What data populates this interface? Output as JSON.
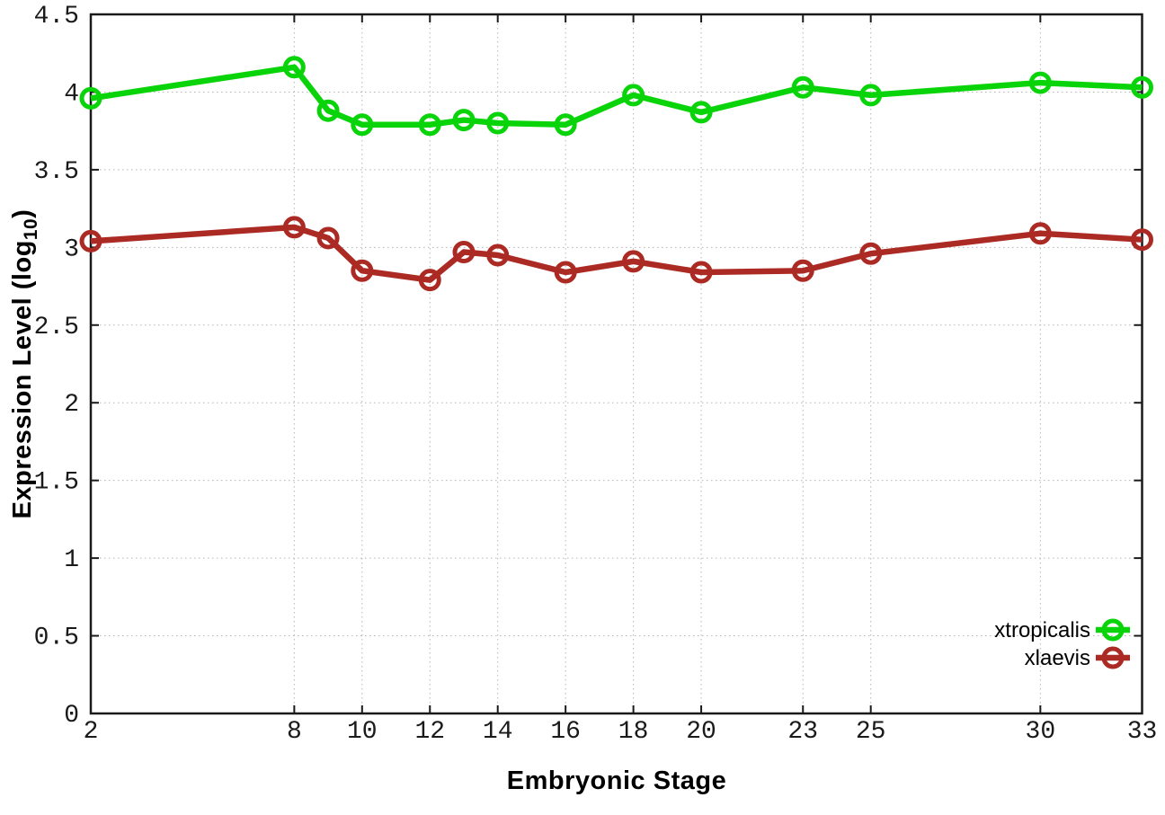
{
  "chart_data": {
    "type": "line",
    "title": "",
    "xlabel": "Embryonic Stage",
    "ylabel": {
      "full": "Expression Level (log10)",
      "pre": "Expression Level (log",
      "sub": "10",
      "post": ")"
    },
    "x": [
      2,
      8,
      9,
      10,
      12,
      13,
      14,
      16,
      18,
      20,
      23,
      25,
      30,
      33
    ],
    "series": [
      {
        "name": "xtropicalis",
        "color": "#09d309",
        "values": [
          3.96,
          4.16,
          3.88,
          3.79,
          3.79,
          3.82,
          3.8,
          3.79,
          3.98,
          3.87,
          4.03,
          3.98,
          4.06,
          4.03
        ]
      },
      {
        "name": "xlaevis",
        "color": "#ac2a24",
        "values": [
          3.04,
          3.13,
          3.06,
          2.85,
          2.79,
          2.97,
          2.95,
          2.84,
          2.91,
          2.84,
          2.85,
          2.96,
          3.09,
          3.05
        ]
      }
    ],
    "xticks": {
      "values": [
        2,
        8,
        10,
        12,
        14,
        16,
        18,
        20,
        23,
        25,
        30,
        33
      ],
      "labels": [
        "2",
        "8",
        "10",
        "12",
        "14",
        "16",
        "18",
        "20",
        "23",
        "25",
        "30",
        "33"
      ]
    },
    "yticks": {
      "values": [
        0,
        0.5,
        1,
        1.5,
        2,
        2.5,
        3,
        3.5,
        4,
        4.5
      ],
      "labels": [
        "0",
        "0.5",
        "1",
        "1.5",
        "2",
        "2.5",
        "3",
        "3.5",
        "4",
        "4.5"
      ]
    },
    "xlim": [
      2,
      33
    ],
    "ylim": [
      0,
      4.5
    ],
    "grid": true,
    "legend": {
      "position": "bottom-right",
      "entries": [
        "xtropicalis",
        "xlaevis"
      ]
    },
    "styles": {
      "background": "#ffffff",
      "axis_color": "#1a1a1a",
      "grid_color": "#b5b5b5",
      "tick_label_color": "#1a1a1a"
    }
  }
}
